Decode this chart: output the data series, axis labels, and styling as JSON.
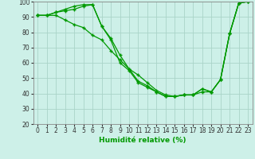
{
  "xlabel": "Humidité relative (%)",
  "background_color": "#cdf0e8",
  "grid_color": "#aad4c8",
  "line_color": "#009900",
  "marker": "+",
  "line1": {
    "x": [
      0,
      1,
      2,
      3,
      4,
      5,
      6,
      7,
      8,
      9,
      10,
      11,
      12,
      13,
      14,
      15,
      16,
      17,
      18,
      19,
      20,
      21,
      22,
      23
    ],
    "y": [
      91,
      91,
      93,
      95,
      97,
      98,
      98,
      84,
      75,
      60,
      55,
      47,
      44,
      41,
      38,
      38,
      39,
      39,
      43,
      41,
      49,
      79,
      99,
      100
    ]
  },
  "line2": {
    "x": [
      0,
      1,
      2,
      3,
      4,
      5,
      6,
      7,
      8,
      9,
      10,
      11,
      12,
      13,
      14,
      15,
      16,
      17,
      18,
      19,
      20,
      21,
      22,
      23
    ],
    "y": [
      91,
      91,
      93,
      94,
      95,
      97,
      98,
      84,
      76,
      65,
      56,
      48,
      45,
      41,
      38,
      38,
      39,
      39,
      43,
      41,
      49,
      79,
      99,
      100
    ]
  },
  "line3": {
    "x": [
      0,
      1,
      2,
      3,
      4,
      5,
      6,
      7,
      8,
      9,
      10,
      11,
      12,
      13,
      14,
      15,
      16,
      17,
      18,
      19,
      20,
      21,
      22,
      23
    ],
    "y": [
      91,
      91,
      91,
      88,
      85,
      83,
      78,
      75,
      68,
      62,
      56,
      52,
      47,
      42,
      39,
      38,
      39,
      39,
      41,
      41,
      49,
      79,
      99,
      100
    ]
  },
  "xlim": [
    -0.5,
    23.5
  ],
  "ylim": [
    20,
    100
  ],
  "yticks": [
    20,
    30,
    40,
    50,
    60,
    70,
    80,
    90,
    100
  ],
  "xticks": [
    0,
    1,
    2,
    3,
    4,
    5,
    6,
    7,
    8,
    9,
    10,
    11,
    12,
    13,
    14,
    15,
    16,
    17,
    18,
    19,
    20,
    21,
    22,
    23
  ],
  "tick_fontsize": 5.5,
  "xlabel_fontsize": 6.5
}
